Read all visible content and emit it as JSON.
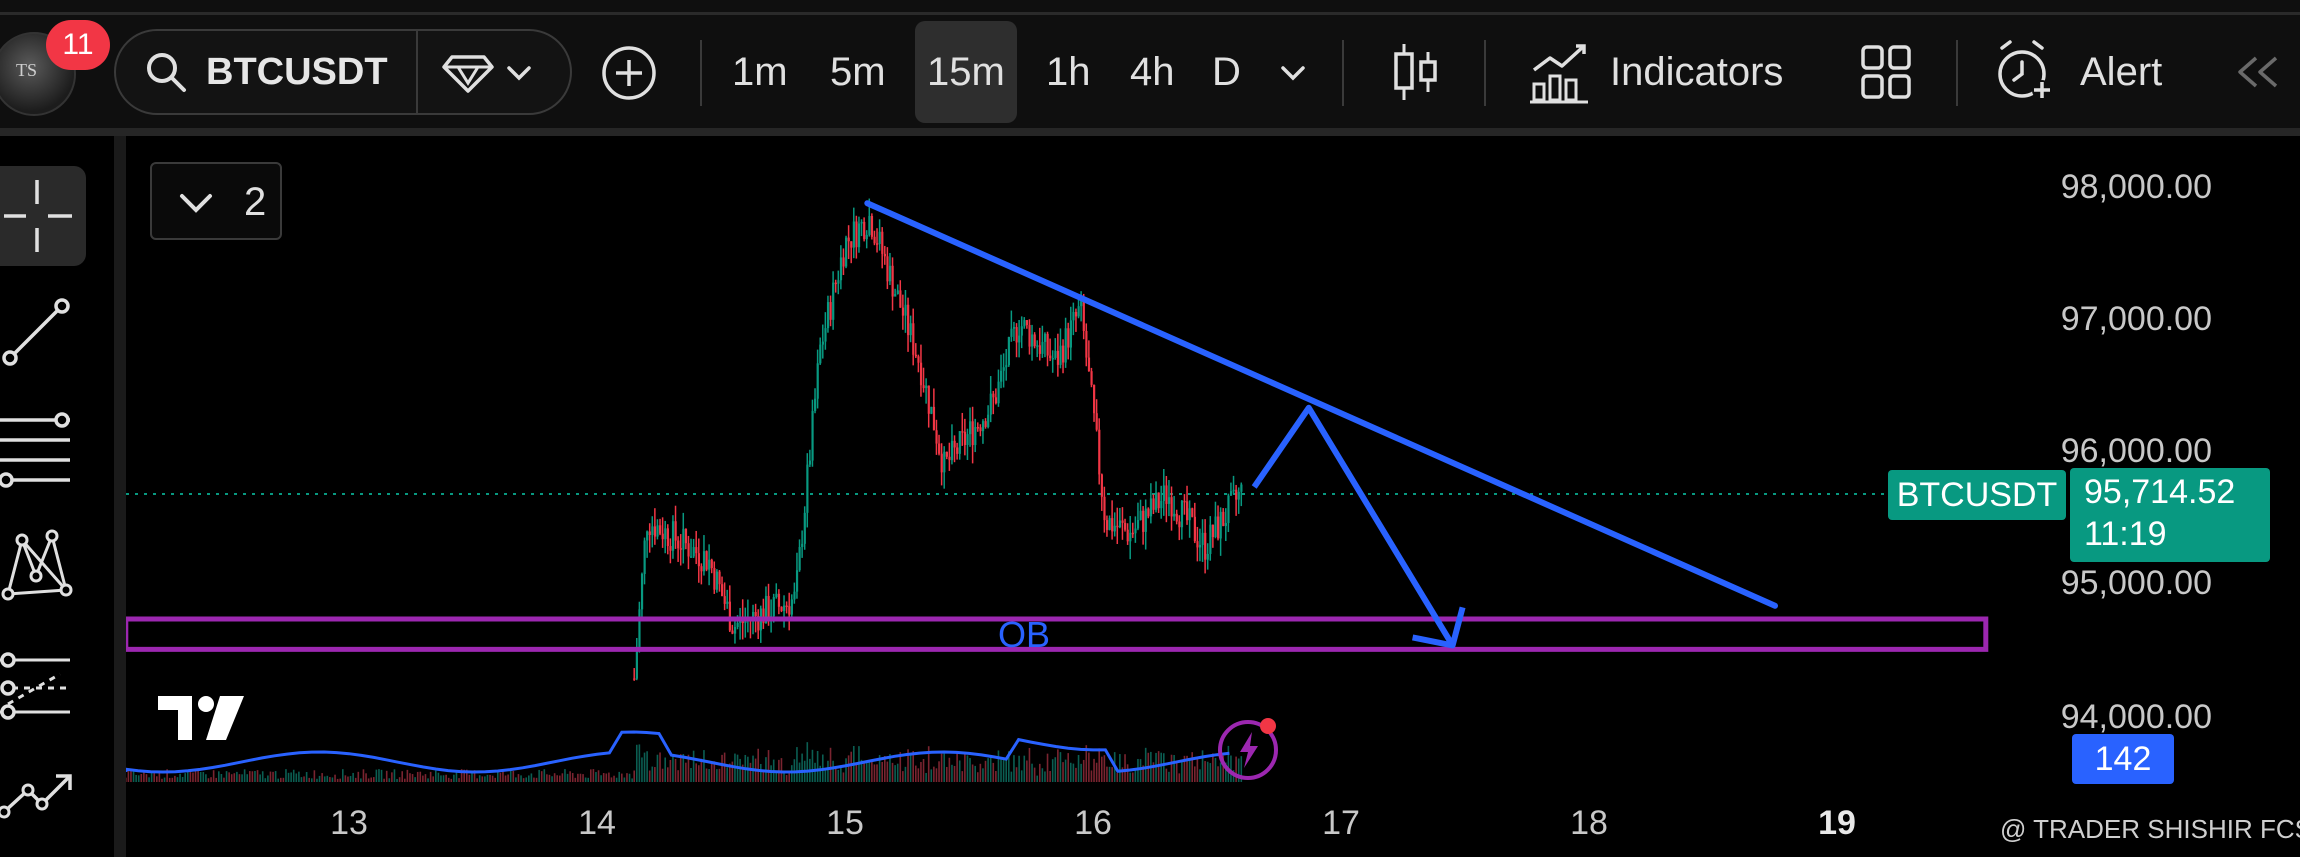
{
  "app": {
    "notification_count": "11",
    "avatar_initials": "TS"
  },
  "toolbar": {
    "symbol": "BTCUSDT",
    "timeframes": [
      "1m",
      "5m",
      "15m",
      "1h",
      "4h",
      "D"
    ],
    "active_timeframe": "15m",
    "indicators_label": "Indicators",
    "alert_label": "Alert",
    "icons": [
      "search-icon",
      "gem-icon",
      "chevron-down-icon",
      "plus-circle-icon",
      "candlestick-icon",
      "indicators-icon",
      "layout-grid-icon",
      "alarm-plus-icon",
      "collapse-left-icon"
    ]
  },
  "left_tools": {
    "icons": [
      "crosshair-icon",
      "trend-line-icon",
      "fib-retracement-icon",
      "pattern-icon",
      "prediction-icon",
      "arrow-forecast-icon"
    ]
  },
  "chart": {
    "legend_count": "2",
    "price_axis": [
      "98,000.00",
      "97,000.00",
      "96,000.00",
      "95,000.00",
      "94,000.00"
    ],
    "date_axis": [
      "13",
      "14",
      "15",
      "16",
      "17",
      "18",
      "19"
    ],
    "current_symbol_tag": "BTCUSDT",
    "current_price": "95,714.52",
    "countdown": "11:19",
    "volume_value": "142",
    "ob_label": "OB",
    "watermark": "@ TRADER SHISHIR FCS",
    "colors": {
      "up": "#089981",
      "down": "#f23645",
      "drawing_line": "#2962ff",
      "ob_box": "#9c27b0",
      "volume_ma": "#2962ff"
    }
  },
  "chart_data": {
    "type": "candlestick",
    "symbol": "BTCUSDT",
    "interval": "15m",
    "x_ticks": [
      "13",
      "14",
      "15",
      "16",
      "17",
      "18",
      "19"
    ],
    "y_ticks": [
      98000,
      97000,
      96000,
      95000,
      94000
    ],
    "ylim": [
      93500,
      98300
    ],
    "last_price": 95714.52,
    "approx_closes": [
      {
        "day": 14.15,
        "price": 94300
      },
      {
        "day": 14.2,
        "price": 95500
      },
      {
        "day": 14.45,
        "price": 95200
      },
      {
        "day": 14.55,
        "price": 94700
      },
      {
        "day": 14.8,
        "price": 94900
      },
      {
        "day": 14.9,
        "price": 96800
      },
      {
        "day": 15.0,
        "price": 97600
      },
      {
        "day": 15.1,
        "price": 97800
      },
      {
        "day": 15.3,
        "price": 96700
      },
      {
        "day": 15.4,
        "price": 95900
      },
      {
        "day": 15.6,
        "price": 96400
      },
      {
        "day": 15.7,
        "price": 97000
      },
      {
        "day": 15.85,
        "price": 96700
      },
      {
        "day": 15.95,
        "price": 97100
      },
      {
        "day": 16.05,
        "price": 95500
      },
      {
        "day": 16.15,
        "price": 95400
      },
      {
        "day": 16.3,
        "price": 95700
      },
      {
        "day": 16.45,
        "price": 95300
      },
      {
        "day": 16.6,
        "price": 95714.52
      }
    ],
    "drawings": {
      "trend_line": {
        "from": {
          "day": 15.09,
          "price": 97900
        },
        "to": {
          "day": 18.75,
          "price": 94850
        }
      },
      "forecast_path": [
        {
          "day": 16.65,
          "price": 95750
        },
        {
          "day": 16.87,
          "price": 96350
        },
        {
          "day": 17.45,
          "price": 94550
        }
      ],
      "ob_zone": {
        "from_day": 12.1,
        "to_day": 19.6,
        "top": 94750,
        "bottom": 94520,
        "label": "OB"
      }
    },
    "volume_last": 142
  }
}
